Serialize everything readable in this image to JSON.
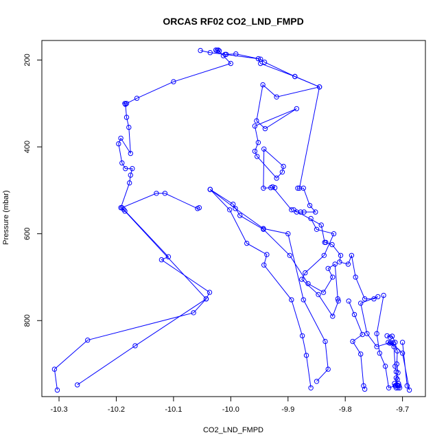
{
  "chart_data": {
    "type": "line",
    "title": "ORCAS RF02 CO2_LND_FMPD",
    "xlabel": "CO2_LND_FMPD",
    "ylabel": "Pressure (mbar)",
    "xlim": [
      -10.33,
      -9.66
    ],
    "ylim": [
      975,
      155
    ],
    "y_reversed": true,
    "grid": false,
    "marker": "open-circle",
    "color": "#0000ff",
    "xticks": [
      {
        "value": -10.3,
        "label": "-10.3"
      },
      {
        "value": -10.2,
        "label": "-10.2"
      },
      {
        "value": -10.1,
        "label": "-10.1"
      },
      {
        "value": -10.0,
        "label": "-10.0"
      },
      {
        "value": -9.9,
        "label": "-9.9"
      },
      {
        "value": -9.8,
        "label": "-9.8"
      },
      {
        "value": -9.7,
        "label": "-9.7"
      }
    ],
    "yticks": [
      {
        "value": 200,
        "label": "200"
      },
      {
        "value": 400,
        "label": "400"
      },
      {
        "value": 600,
        "label": "600"
      },
      {
        "value": 800,
        "label": "800"
      }
    ],
    "series": [
      {
        "points": [
          [
            -10.303,
            960
          ],
          [
            -10.308,
            912
          ],
          [
            -10.25,
            845
          ],
          [
            -10.065,
            782
          ],
          [
            -10.043,
            750
          ],
          [
            -10.037,
            735
          ],
          [
            -10.121,
            660
          ],
          [
            -10.109,
            653
          ],
          [
            -10.187,
            544
          ],
          [
            -10.19,
            540
          ],
          [
            -10.13,
            507
          ],
          [
            -10.115,
            507
          ],
          [
            -10.058,
            542
          ],
          [
            -10.055,
            540
          ]
        ]
      },
      {
        "points": [
          [
            -10.268,
            948
          ],
          [
            -10.167,
            858
          ],
          [
            -10.043,
            750
          ],
          [
            -10.185,
            548
          ],
          [
            -10.192,
            540
          ],
          [
            -10.177,
            483
          ],
          [
            -10.175,
            465
          ],
          [
            -10.172,
            450
          ],
          [
            -10.184,
            450
          ],
          [
            -10.19,
            437
          ],
          [
            -10.196,
            393
          ],
          [
            -10.192,
            380
          ],
          [
            -10.175,
            415
          ],
          [
            -10.178,
            355
          ],
          [
            -10.182,
            332
          ],
          [
            -10.184,
            302
          ],
          [
            -10.185,
            300
          ],
          [
            -10.182,
            300
          ],
          [
            -10.164,
            288
          ],
          [
            -10.1,
            250
          ],
          [
            -10.0,
            208
          ],
          [
            -10.013,
            190
          ],
          [
            -10.022,
            177
          ],
          [
            -10.026,
            177
          ],
          [
            -10.024,
            178
          ],
          [
            -10.02,
            179
          ]
        ]
      },
      {
        "points": [
          [
            -10.053,
            178
          ],
          [
            -10.036,
            183
          ],
          [
            -10.01,
            187
          ],
          [
            -9.952,
            197
          ],
          [
            -9.948,
            208
          ],
          [
            -9.888,
            238
          ],
          [
            -9.845,
            262
          ],
          [
            -9.92,
            285
          ],
          [
            -9.944,
            257
          ],
          [
            -9.955,
            340
          ],
          [
            -9.94,
            358
          ],
          [
            -9.885,
            312
          ],
          [
            -9.958,
            352
          ],
          [
            -9.952,
            390
          ],
          [
            -9.958,
            410
          ],
          [
            -9.954,
            422
          ],
          [
            -9.92,
            472
          ],
          [
            -9.91,
            458
          ],
          [
            -9.908,
            445
          ],
          [
            -9.942,
            405
          ],
          [
            -9.943,
            495
          ],
          [
            -9.93,
            494
          ],
          [
            -9.923,
            494
          ],
          [
            -9.927,
            492
          ],
          [
            -9.894,
            545
          ]
        ]
      },
      {
        "points": [
          [
            -10.008,
            187
          ],
          [
            -9.991,
            186
          ],
          [
            -9.948,
            198
          ],
          [
            -9.941,
            205
          ],
          [
            -9.888,
            238
          ],
          [
            -9.845,
            262
          ],
          [
            -9.88,
            495
          ],
          [
            -9.883,
            495
          ],
          [
            -9.873,
            495
          ],
          [
            -9.862,
            535
          ],
          [
            -9.852,
            550
          ],
          [
            -9.872,
            550
          ],
          [
            -9.878,
            550
          ],
          [
            -9.885,
            550
          ],
          [
            -9.89,
            545
          ],
          [
            -9.842,
            580
          ],
          [
            -9.836,
            620
          ],
          [
            -9.834,
            620
          ],
          [
            -9.823,
            625
          ],
          [
            -9.808,
            650
          ],
          [
            -9.81,
            665
          ],
          [
            -9.795,
            670
          ],
          [
            -9.789,
            650
          ],
          [
            -9.782,
            700
          ],
          [
            -9.766,
            750
          ],
          [
            -9.75,
            750
          ],
          [
            -9.743,
            745
          ],
          [
            -9.773,
            760
          ],
          [
            -9.762,
            830
          ],
          [
            -9.745,
            860
          ],
          [
            -9.72,
            850
          ],
          [
            -9.7,
            875
          ],
          [
            -9.688,
            960
          ],
          [
            -9.692,
            950
          ],
          [
            -9.7,
            850
          ]
        ]
      },
      {
        "points": [
          [
            -10.036,
            498
          ],
          [
            -9.996,
            532
          ],
          [
            -9.984,
            558
          ],
          [
            -9.943,
            590
          ],
          [
            -9.897,
            650
          ],
          [
            -9.865,
            715
          ],
          [
            -9.838,
            735
          ],
          [
            -9.822,
            700
          ],
          [
            -9.83,
            680
          ],
          [
            -9.818,
            670
          ],
          [
            -9.813,
            750
          ],
          [
            -9.812,
            755
          ],
          [
            -9.822,
            790
          ],
          [
            -9.847,
            740
          ],
          [
            -9.876,
            705
          ],
          [
            -9.87,
            690
          ],
          [
            -9.837,
            650
          ],
          [
            -9.82,
            600
          ],
          [
            -9.85,
            590
          ],
          [
            -9.86,
            565
          ]
        ]
      },
      {
        "points": [
          [
            -10.036,
            498
          ],
          [
            -10.002,
            545
          ],
          [
            -9.972,
            622
          ],
          [
            -9.937,
            648
          ],
          [
            -9.942,
            672
          ],
          [
            -9.894,
            752
          ],
          [
            -9.875,
            835
          ],
          [
            -9.868,
            880
          ],
          [
            -9.86,
            955
          ]
        ]
      },
      {
        "points": [
          [
            -10.036,
            498
          ],
          [
            -9.992,
            542
          ],
          [
            -9.943,
            588
          ],
          [
            -9.9,
            600
          ],
          [
            -9.873,
            752
          ],
          [
            -9.835,
            848
          ],
          [
            -9.83,
            912
          ],
          [
            -9.85,
            940
          ]
        ]
      },
      {
        "points": [
          [
            -9.794,
            755
          ],
          [
            -9.784,
            786
          ],
          [
            -9.77,
            832
          ],
          [
            -9.787,
            848
          ],
          [
            -9.773,
            877
          ],
          [
            -9.768,
            950
          ],
          [
            -9.766,
            958
          ]
        ]
      },
      {
        "points": [
          [
            -9.733,
            742
          ],
          [
            -9.745,
            830
          ],
          [
            -9.74,
            875
          ],
          [
            -9.73,
            905
          ],
          [
            -9.724,
            955
          ],
          [
            -9.713,
            950
          ],
          [
            -9.708,
            950
          ],
          [
            -9.711,
            955
          ]
        ]
      },
      {
        "points": [
          [
            -9.727,
            835
          ],
          [
            -9.722,
            838
          ],
          [
            -9.718,
            836
          ],
          [
            -9.713,
            850
          ],
          [
            -9.722,
            852
          ],
          [
            -9.715,
            860
          ],
          [
            -9.713,
            905
          ],
          [
            -9.711,
            918
          ],
          [
            -9.709,
            935
          ],
          [
            -9.71,
            948
          ],
          [
            -9.708,
            955
          ],
          [
            -9.706,
            950
          ]
        ]
      },
      {
        "points": [
          [
            -9.725,
            850
          ],
          [
            -9.716,
            852
          ],
          [
            -9.709,
            870
          ],
          [
            -9.71,
            900
          ],
          [
            -9.708,
            920
          ],
          [
            -9.711,
            932
          ],
          [
            -9.712,
            950
          ],
          [
            -9.714,
            945
          ],
          [
            -9.707,
            945
          ],
          [
            -9.705,
            955
          ]
        ]
      }
    ]
  }
}
